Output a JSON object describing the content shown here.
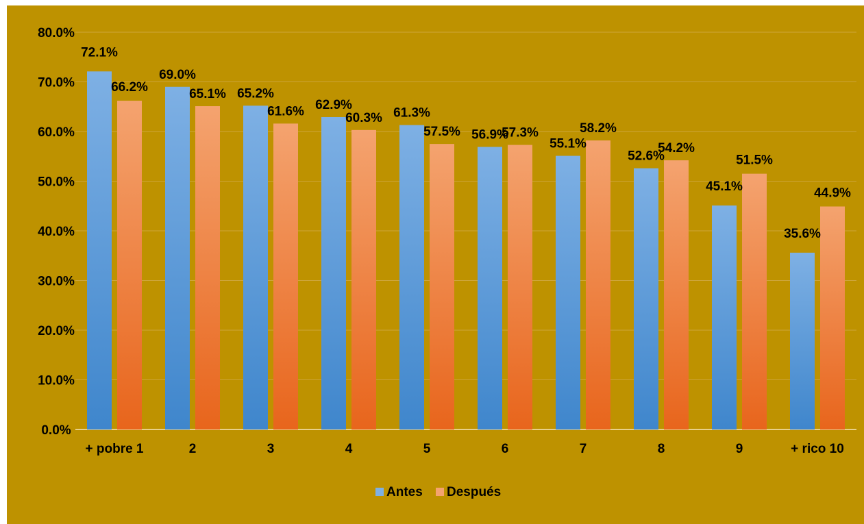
{
  "chart_data": {
    "type": "bar",
    "categories": [
      "+ pobre 1",
      "2",
      "3",
      "4",
      "5",
      "6",
      "7",
      "8",
      "9",
      "+ rico 10"
    ],
    "series": [
      {
        "name": "Antes",
        "values": [
          72.1,
          69.0,
          65.2,
          62.9,
          61.3,
          56.9,
          55.1,
          52.6,
          45.1,
          35.6
        ],
        "labels": [
          "72.1%",
          "69.0%",
          "65.2%",
          "62.9%",
          "61.3%",
          "56.9%",
          "55.1%",
          "52.6%",
          "45.1%",
          "35.6%"
        ]
      },
      {
        "name": "Después",
        "values": [
          66.2,
          65.1,
          61.6,
          60.3,
          57.5,
          57.3,
          58.2,
          54.2,
          51.5,
          44.9
        ],
        "labels": [
          "66.2%",
          "65.1%",
          "61.6%",
          "60.3%",
          "57.5%",
          "57.3%",
          "58.2%",
          "54.2%",
          "51.5%",
          "44.9%"
        ]
      }
    ],
    "ylim": [
      0,
      80
    ],
    "y_ticks": [
      "0.0%",
      "10.0%",
      "20.0%",
      "30.0%",
      "40.0%",
      "50.0%",
      "60.0%",
      "70.0%",
      "80.0%"
    ],
    "grid": true,
    "legend_position": "bottom",
    "title": "",
    "xlabel": "",
    "ylabel": "",
    "colors": {
      "background": "#be9200",
      "gridline": "#cda53a",
      "axis_line": "#e8d08a",
      "antes_light": "#7eb0e4",
      "antes_dark": "#3f86cc",
      "despues_light": "#f4a36f",
      "despues_dark": "#e8651c"
    }
  }
}
